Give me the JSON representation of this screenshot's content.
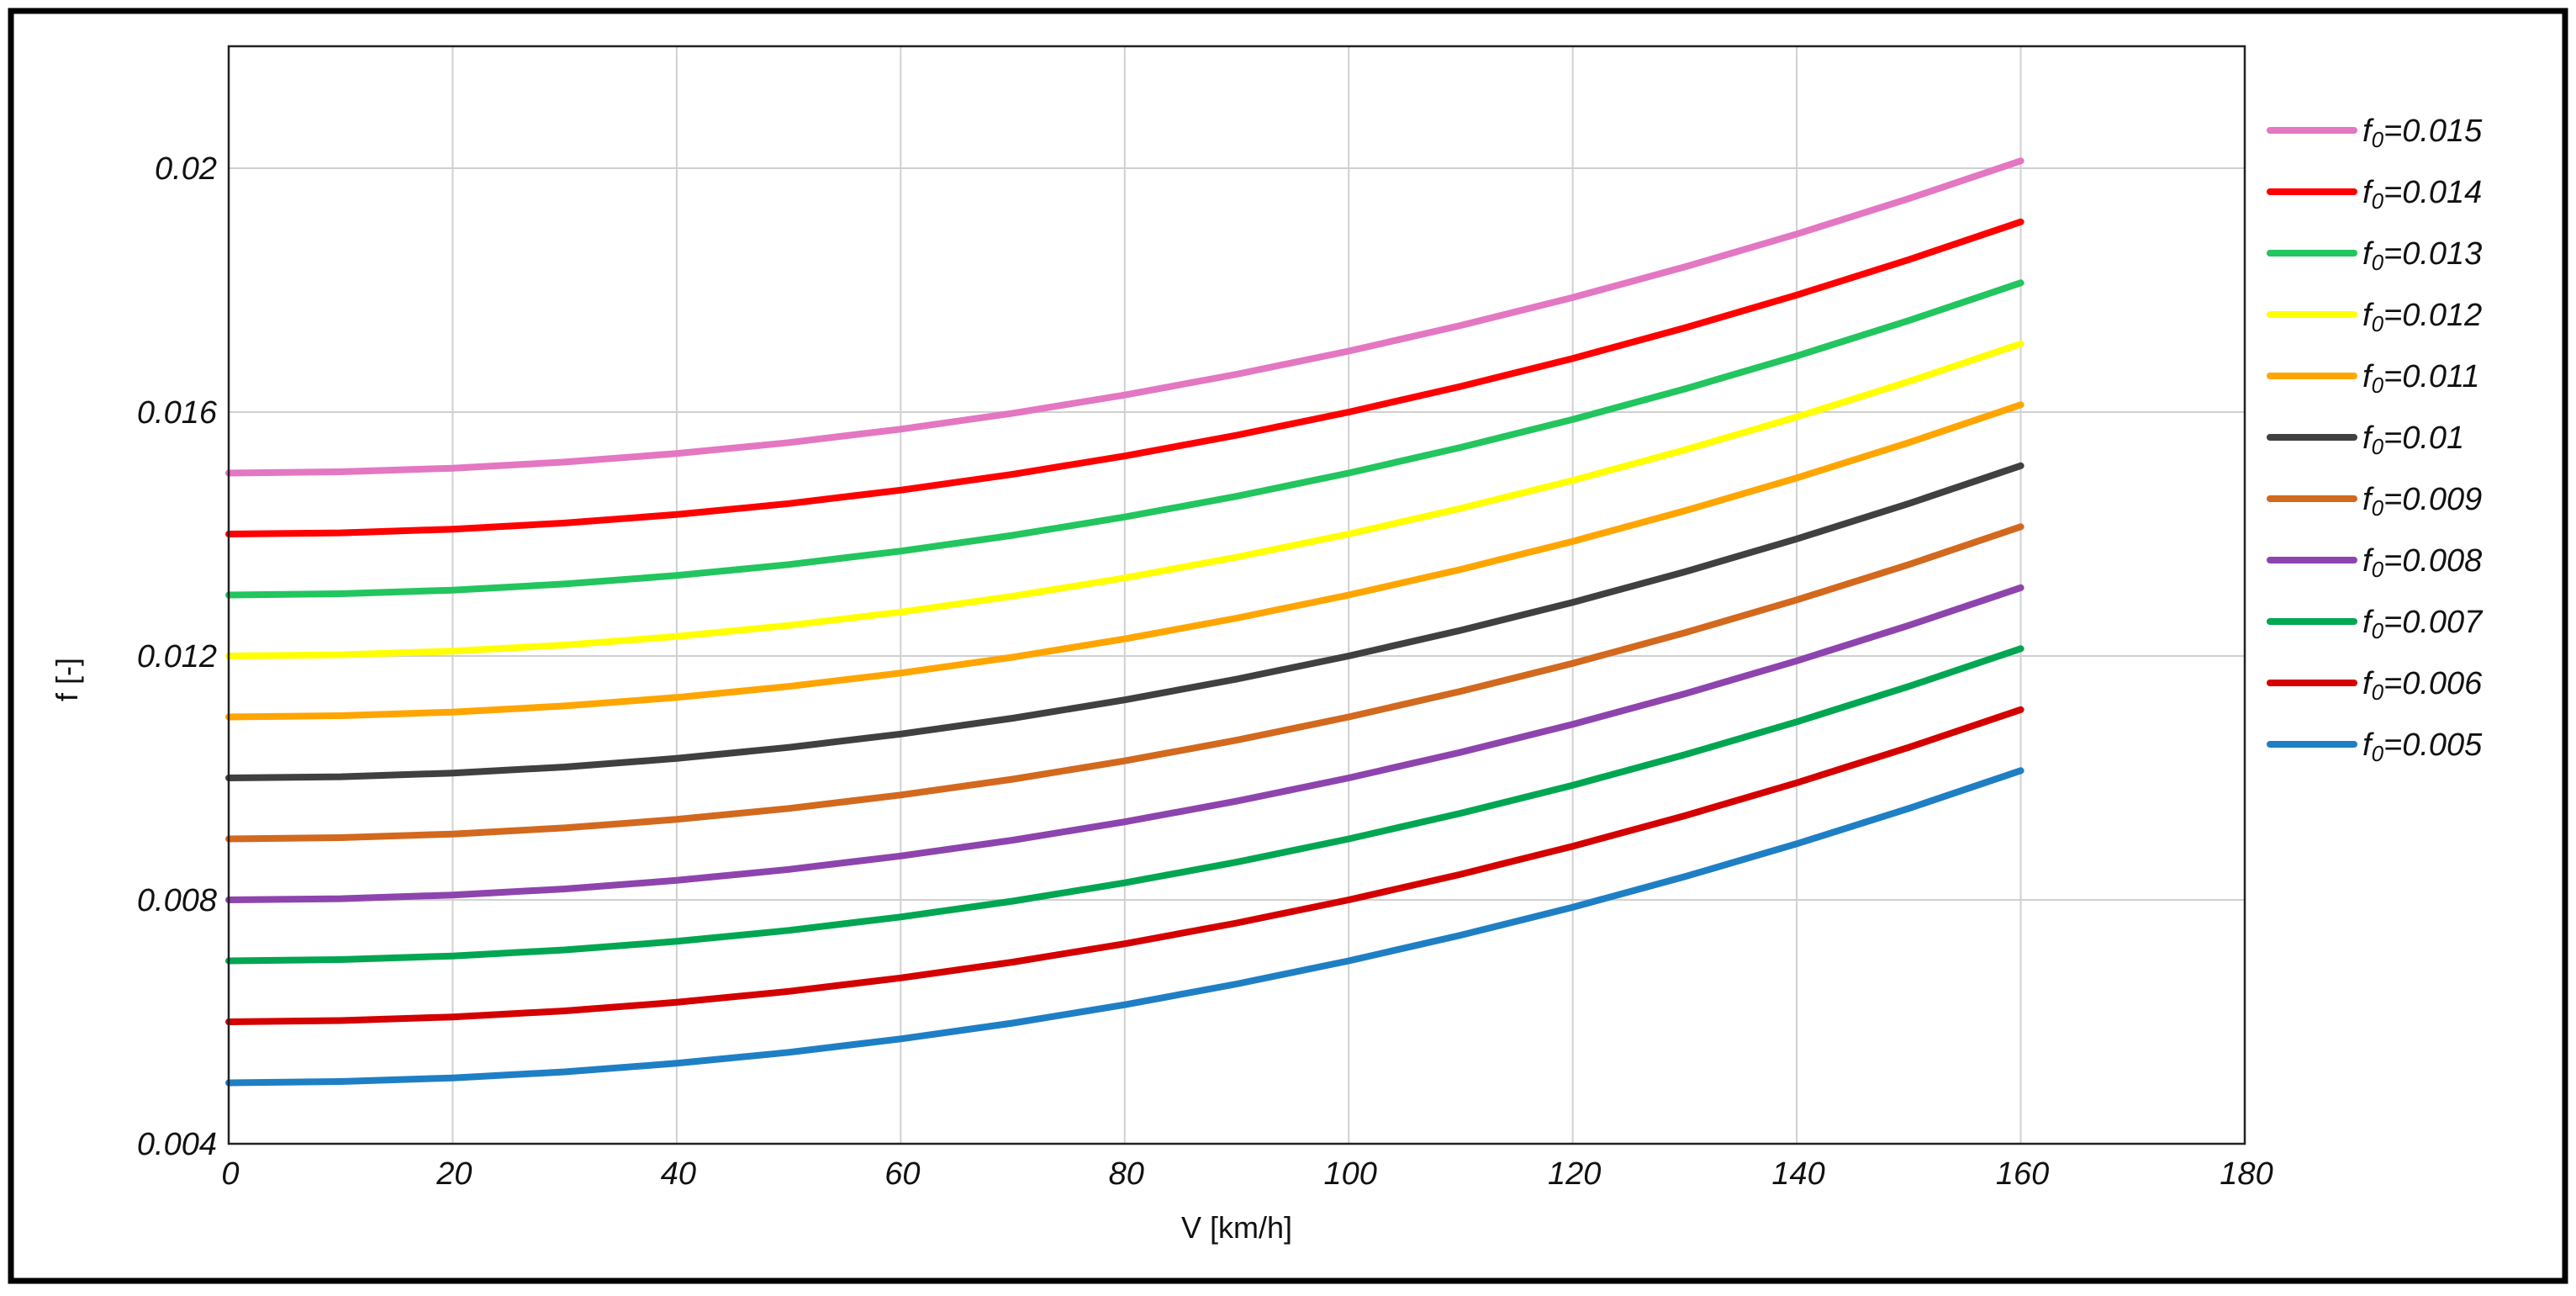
{
  "chart_data": {
    "type": "line",
    "title": "",
    "xlabel": "V [km/h]",
    "ylabel": "f [-]",
    "xlim": [
      0,
      180
    ],
    "ylim": [
      0.004,
      0.022
    ],
    "x_ticks": [
      0,
      20,
      40,
      60,
      80,
      100,
      120,
      140,
      160,
      180
    ],
    "x_tick_labels": [
      "0",
      "20",
      "40",
      "60",
      "80",
      "100",
      "120",
      "140",
      "160",
      "180"
    ],
    "y_ticks": [
      0.004,
      0.008,
      0.012,
      0.016,
      0.02
    ],
    "y_tick_labels": [
      "0.004",
      "0.008",
      "0.012",
      "0.016",
      "0.02"
    ],
    "grid": true,
    "legend_position": "right",
    "x": [
      0,
      10,
      20,
      30,
      40,
      50,
      60,
      70,
      80,
      90,
      100,
      110,
      120,
      130,
      140,
      150,
      160
    ],
    "series": [
      {
        "name": "0.015",
        "label_prefix": "f",
        "label_sub": "0",
        "label_rest": "=0.015",
        "color": "#e377c2",
        "values": [
          0.015,
          0.01502,
          0.01508,
          0.01518,
          0.01532,
          0.0155,
          0.01572,
          0.01598,
          0.01628,
          0.01662,
          0.017,
          0.01742,
          0.01788,
          0.01838,
          0.01892,
          0.0195,
          0.02012
        ]
      },
      {
        "name": "0.014",
        "label_prefix": "f",
        "label_sub": "0",
        "label_rest": "=0.014",
        "color": "#ff0000",
        "values": [
          0.014,
          0.01402,
          0.01408,
          0.01418,
          0.01432,
          0.0145,
          0.01472,
          0.01498,
          0.01528,
          0.01562,
          0.016,
          0.01642,
          0.01688,
          0.01738,
          0.01792,
          0.0185,
          0.01912
        ]
      },
      {
        "name": "0.013",
        "label_prefix": "f",
        "label_sub": "0",
        "label_rest": "=0.013",
        "color": "#22c55e",
        "values": [
          0.013,
          0.01302,
          0.01308,
          0.01318,
          0.01332,
          0.0135,
          0.01372,
          0.01398,
          0.01428,
          0.01462,
          0.015,
          0.01542,
          0.01588,
          0.01638,
          0.01692,
          0.0175,
          0.01812
        ]
      },
      {
        "name": "0.012",
        "label_prefix": "f",
        "label_sub": "0",
        "label_rest": "=0.012",
        "color": "#ffff00",
        "values": [
          0.012,
          0.01202,
          0.01208,
          0.01218,
          0.01232,
          0.0125,
          0.01272,
          0.01298,
          0.01328,
          0.01362,
          0.014,
          0.01442,
          0.01488,
          0.01538,
          0.01592,
          0.0165,
          0.01712
        ]
      },
      {
        "name": "0.011",
        "label_prefix": "f",
        "label_sub": "0",
        "label_rest": "=0.011",
        "color": "#ffa500",
        "values": [
          0.011,
          0.01102,
          0.01108,
          0.01118,
          0.01132,
          0.0115,
          0.01172,
          0.01198,
          0.01228,
          0.01262,
          0.013,
          0.01342,
          0.01388,
          0.01438,
          0.01492,
          0.0155,
          0.01612
        ]
      },
      {
        "name": "0.01",
        "label_prefix": "f",
        "label_sub": "0",
        "label_rest": "=0.01",
        "color": "#404040",
        "values": [
          0.01,
          0.01002,
          0.01008,
          0.01018,
          0.01032,
          0.0105,
          0.01072,
          0.01098,
          0.01128,
          0.01162,
          0.012,
          0.01242,
          0.01288,
          0.01338,
          0.01392,
          0.0145,
          0.01512
        ]
      },
      {
        "name": "0.009",
        "label_prefix": "f",
        "label_sub": "0",
        "label_rest": "=0.009",
        "color": "#d2691e",
        "values": [
          0.009,
          0.00902,
          0.00908,
          0.00918,
          0.00932,
          0.0095,
          0.00972,
          0.00998,
          0.01028,
          0.01062,
          0.011,
          0.01142,
          0.01188,
          0.01238,
          0.01292,
          0.0135,
          0.01412
        ]
      },
      {
        "name": "0.008",
        "label_prefix": "f",
        "label_sub": "0",
        "label_rest": "=0.008",
        "color": "#8e44ad",
        "values": [
          0.008,
          0.00802,
          0.00808,
          0.00818,
          0.00832,
          0.0085,
          0.00872,
          0.00898,
          0.00928,
          0.00962,
          0.01,
          0.01042,
          0.01088,
          0.01138,
          0.01192,
          0.0125,
          0.01312
        ]
      },
      {
        "name": "0.007",
        "label_prefix": "f",
        "label_sub": "0",
        "label_rest": "=0.007",
        "color": "#00a651",
        "values": [
          0.007,
          0.00702,
          0.00708,
          0.00718,
          0.00732,
          0.0075,
          0.00772,
          0.00798,
          0.00828,
          0.00862,
          0.009,
          0.00942,
          0.00988,
          0.01038,
          0.01092,
          0.0115,
          0.01212
        ]
      },
      {
        "name": "0.006",
        "label_prefix": "f",
        "label_sub": "0",
        "label_rest": "=0.006",
        "color": "#d40000",
        "values": [
          0.006,
          0.00602,
          0.00608,
          0.00618,
          0.00632,
          0.0065,
          0.00672,
          0.00698,
          0.00728,
          0.00762,
          0.008,
          0.00842,
          0.00888,
          0.00938,
          0.00992,
          0.0105,
          0.01112
        ]
      },
      {
        "name": "0.005",
        "label_prefix": "f",
        "label_sub": "0",
        "label_rest": "=0.005",
        "color": "#1f7fc4",
        "values": [
          0.005,
          0.00502,
          0.00508,
          0.00518,
          0.00532,
          0.0055,
          0.00572,
          0.00598,
          0.00628,
          0.00662,
          0.007,
          0.00742,
          0.00788,
          0.00838,
          0.00892,
          0.0095,
          0.01012
        ]
      }
    ]
  }
}
